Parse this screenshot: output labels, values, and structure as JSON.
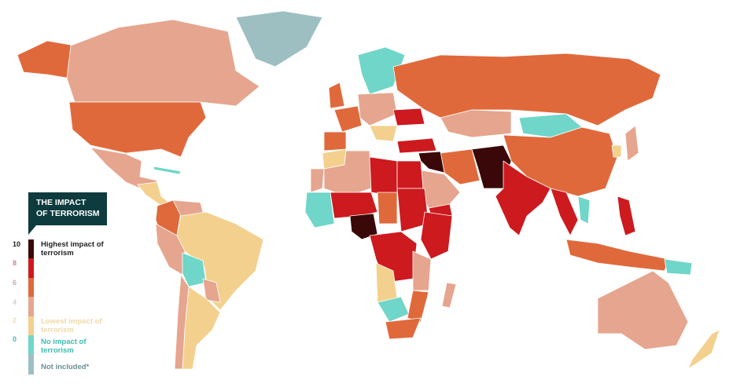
{
  "legend": {
    "title_line1": "THE IMPACT",
    "title_line2": "OF TERRORISM",
    "ticks": [
      "10",
      "8",
      "6",
      "4",
      "2",
      "0"
    ],
    "highest": "Highest impact of terrorism",
    "lowest": "Lowest impact of terrorism",
    "none": "No impact of terrorism",
    "not_included": "Not included*"
  },
  "scale_colors": {
    "highest": "#3a0808",
    "high": "#cc1a1f",
    "medium_high": "#e0693b",
    "medium": "#e6a58e",
    "low": "#f4d08e",
    "none": "#6fd6c9",
    "not_included": "#9dbfc2"
  }
}
